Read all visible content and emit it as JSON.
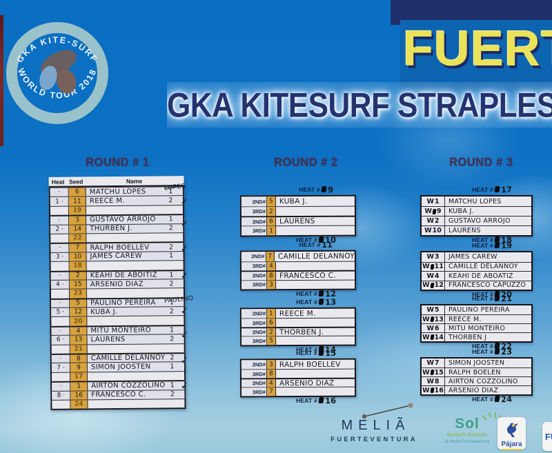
{
  "header": {
    "event_name_partial": "FUERT",
    "banner_title_partial": "GKA KITESURF STRAPLESS",
    "logo_badge": {
      "arc_top": "GKA KITE-SURF",
      "arc_bottom": "WORLD TOUR 2018"
    }
  },
  "heat_label_prefix": "HEAT #",
  "rounds": {
    "round1": {
      "title": "ROUND # 1",
      "columns": [
        "Heat",
        "Seed",
        "Name"
      ],
      "heats": [
        {
          "heat": "1",
          "margin_note": "LOPES",
          "margin_note_struck": true,
          "checkmark": true,
          "entries": [
            {
              "seed": "6",
              "name": "MATCHU LOPES",
              "place": "1"
            },
            {
              "seed": "11",
              "name": "REECE M.",
              "place": "2"
            },
            {
              "seed": "19",
              "name": "",
              "place": ""
            }
          ]
        },
        {
          "heat": "2",
          "checkmark": true,
          "entries": [
            {
              "seed": "3",
              "name": "GUSTAVO ARROJO",
              "place": "1"
            },
            {
              "seed": "14",
              "name": "THURBEN J.",
              "place": "2"
            },
            {
              "seed": "22",
              "name": "",
              "place": ""
            }
          ]
        },
        {
          "heat": "3",
          "checkmark": true,
          "entries": [
            {
              "seed": "7",
              "name": "RALPH BOELLEV",
              "place": "2"
            },
            {
              "seed": "10",
              "name": "JAMES CAREW",
              "place": "1"
            },
            {
              "seed": "18",
              "name": "",
              "place": ""
            }
          ]
        },
        {
          "heat": "4",
          "checkmark": true,
          "entries": [
            {
              "seed": "2",
              "name": "KEAHI DE ABOITIZ",
              "place": "1"
            },
            {
              "seed": "15",
              "name": "ARSENIO DIAZ",
              "place": "2"
            },
            {
              "seed": "23",
              "name": "",
              "place": ""
            }
          ]
        },
        {
          "heat": "5",
          "margin_note": "PAULINO",
          "margin_note_struck": false,
          "checkmark": true,
          "entries": [
            {
              "seed": "5",
              "name": "PAULINO PEREIRA",
              "place": "1"
            },
            {
              "seed": "12",
              "name": "KUBA J.",
              "place": "2"
            },
            {
              "seed": "20",
              "name": "",
              "place": ""
            }
          ]
        },
        {
          "heat": "6",
          "checkmark": true,
          "entries": [
            {
              "seed": "4",
              "name": "MITU MONTEIRO",
              "place": "1"
            },
            {
              "seed": "13",
              "name": "LAURENS",
              "place": "2"
            },
            {
              "seed": "21",
              "name": "",
              "place": ""
            }
          ]
        },
        {
          "heat": "7",
          "checkmark": true,
          "entries": [
            {
              "seed": "8",
              "name": "CAMILLE DELANNOY",
              "place": "2"
            },
            {
              "seed": "9",
              "name": "SIMON JOOSTEN",
              "place": "1"
            },
            {
              "seed": "17",
              "name": "",
              "place": ""
            }
          ]
        },
        {
          "heat": "8",
          "checkmark": true,
          "entries": [
            {
              "seed": "1",
              "name": "AIRTON COZZOLINO",
              "place": "1"
            },
            {
              "seed": "16",
              "name": "FRANCESCO C.",
              "place": "2"
            },
            {
              "seed": "24",
              "name": "",
              "place": ""
            }
          ]
        }
      ]
    },
    "round2": {
      "title": "ROUND # 2",
      "boxes": [
        {
          "above": {
            "num": "9",
            "scratch": true
          },
          "below": {
            "num": "10",
            "scratch": true
          },
          "rows": [
            {
              "label": "2ND#",
              "seed": "5",
              "name": "KUBA J."
            },
            {
              "label": "3RD#",
              "seed": "2",
              "name": ""
            },
            {
              "label": "2ND#",
              "seed": "6",
              "name": "LAURENS"
            },
            {
              "label": "3RD#",
              "seed": "1",
              "name": ""
            }
          ]
        },
        {
          "above": {
            "num": "11",
            "scratch": false
          },
          "below": {
            "num": "12",
            "scratch": true
          },
          "rows": [
            {
              "label": "2ND#",
              "seed": "7",
              "name": "CAMILLE DELANNOY"
            },
            {
              "label": "3RD#",
              "seed": "4",
              "name": ""
            },
            {
              "label": "2ND#",
              "seed": "8",
              "name": "FRANCESCO C."
            },
            {
              "label": "3RD#",
              "seed": "3",
              "name": ""
            }
          ]
        },
        {
          "above": {
            "num": "13",
            "scratch": true
          },
          "below": {
            "num": "14",
            "scratch": true
          },
          "rows": [
            {
              "label": "2ND#",
              "seed": "1",
              "name": "REECE M."
            },
            {
              "label": "3RD#",
              "seed": "6",
              "name": ""
            },
            {
              "label": "2ND#",
              "seed": "2",
              "name": "THORBEN J."
            },
            {
              "label": "3RD#",
              "seed": "5",
              "name": ""
            }
          ]
        },
        {
          "above": {
            "num": "15",
            "scratch": true
          },
          "below": {
            "num": "16",
            "scratch": true
          },
          "rows": [
            {
              "label": "2ND#",
              "seed": "3",
              "name": "RALPH BOELLEV"
            },
            {
              "label": "3RD#",
              "seed": "8",
              "name": ""
            },
            {
              "label": "2ND#",
              "seed": "4",
              "name": "ARSENIO DIAZ"
            },
            {
              "label": "3RD#",
              "seed": "7",
              "name": ""
            }
          ]
        }
      ]
    },
    "round3": {
      "title": "ROUND # 3",
      "boxes": [
        {
          "above": {
            "num": "17",
            "scratch": true
          },
          "below": {
            "num": "18",
            "scratch": true
          },
          "rows": [
            {
              "label": "W1",
              "scratch": false,
              "name": "MATCHU LOPES"
            },
            {
              "label": "W9",
              "scratch": true,
              "name": "KUBA J."
            },
            {
              "label": "W2",
              "scratch": false,
              "name": "GUSTAVO ARROJO"
            },
            {
              "label": "W10",
              "scratch": false,
              "name": "LAURENS"
            }
          ]
        },
        {
          "above": {
            "num": "19",
            "scratch": true
          },
          "below": {
            "num": "20",
            "scratch": true
          },
          "rows": [
            {
              "label": "W3",
              "scratch": false,
              "name": "JAMES CAREW"
            },
            {
              "label": "W11",
              "scratch": true,
              "name": "CAMILLE DELANNOY"
            },
            {
              "label": "W4",
              "scratch": false,
              "name": "KEAHI DE ABOATIZ"
            },
            {
              "label": "W12",
              "scratch": true,
              "name": "FRANCESCO CAPUZZO"
            }
          ]
        },
        {
          "above": {
            "num": "21",
            "scratch": true
          },
          "below": {
            "num": "22",
            "scratch": true
          },
          "rows": [
            {
              "label": "W5",
              "scratch": false,
              "name": "PAULINO PEREIRA"
            },
            {
              "label": "W13",
              "scratch": true,
              "name": "REECE M."
            },
            {
              "label": "W6",
              "scratch": false,
              "name": "MITU MONTEIRO"
            },
            {
              "label": "W14",
              "scratch": true,
              "name": "THORBEN J"
            }
          ]
        },
        {
          "above": {
            "num": "23",
            "scratch": true
          },
          "below": {
            "num": "24",
            "scratch": true
          },
          "rows": [
            {
              "label": "W7",
              "scratch": false,
              "name": "SIMON JOOSTEN"
            },
            {
              "label": "W15",
              "scratch": true,
              "name": "RALPH BOELEN"
            },
            {
              "label": "W8",
              "scratch": false,
              "name": "AIRTON COZZOLINO"
            },
            {
              "label": "W16",
              "scratch": true,
              "name": "ARSENIO DIAZ"
            }
          ]
        }
      ]
    }
  },
  "sponsors": {
    "melia": {
      "line1": "MELIÃ",
      "line2": "FUERTEVENTURA"
    },
    "sol": {
      "line1": "Sol",
      "line2": "beach house",
      "line3": "at Meliá Fuerteventura"
    },
    "pajara": {
      "label": "Pájara"
    },
    "partial_logo": {
      "label": "FU"
    }
  },
  "colors": {
    "background_blue": "#0a6ec2",
    "navy_band": "#1f2f6a",
    "panel_blue": "#0d64b1",
    "title_yellow": "#eae257",
    "title_navy": "#24336f",
    "round_header": "#463052",
    "paper": "#e9e9ee",
    "seed_orange": "#d8a23c",
    "ink": "#17171c",
    "badge_ring": "#a6c8cb",
    "melia_navy": "#1c3a5e",
    "sol_green": "#3f9f84",
    "pajara_blue": "#2b4fa0",
    "red_edge": "#74231f"
  }
}
